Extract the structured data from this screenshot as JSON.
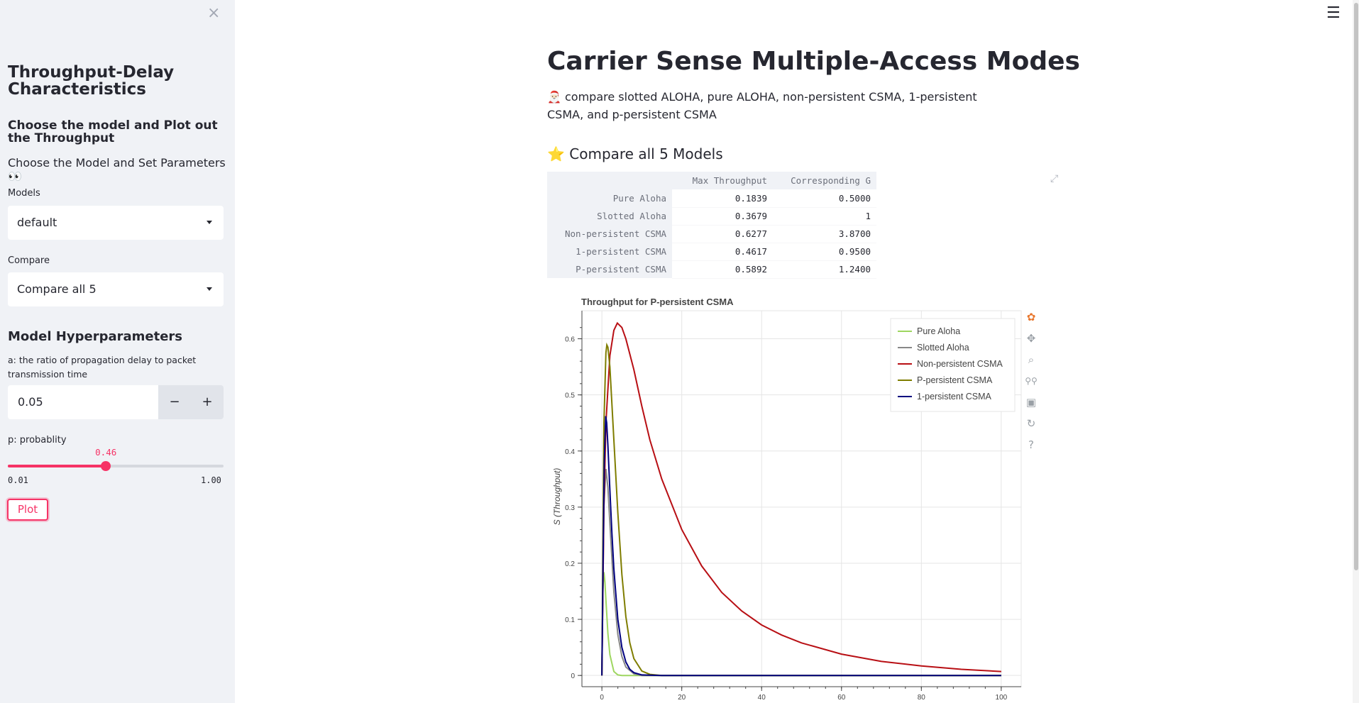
{
  "sidebar": {
    "close_icon": "×",
    "title": "Throughput-Delay Characteristics",
    "subtitle": "Choose the model and Plot out the Throughput",
    "text": "Choose the Model and Set Parameters 👀",
    "models_label": "Models",
    "models_value": "default",
    "compare_label": "Compare",
    "compare_value": "Compare all 5",
    "hyper_title": "Model Hyperparameters",
    "a_label": "a: the ratio of propagation delay to packet transmission time",
    "a_value": "0.05",
    "minus": "−",
    "plus": "+",
    "p_label": "p: probablity",
    "p_value": "0.46",
    "p_fraction": 0.4545,
    "p_min": "0.01",
    "p_max": "1.00",
    "plot_button": "Plot"
  },
  "header": {
    "menu_icon": "☰"
  },
  "main": {
    "title": "Carrier Sense Multiple-Access Modes",
    "description": "🎅🏻 compare slotted ALOHA, pure ALOHA, non-persistent CSMA, 1-persistent CSMA, and p-persistent CSMA",
    "section_title": "⭐ Compare all 5 Models",
    "table": {
      "columns": [
        "Max Throughput",
        "Corresponding G"
      ],
      "rows": [
        {
          "name": "Pure Aloha",
          "max": "0.1839",
          "g": "0.5000"
        },
        {
          "name": "Slotted Aloha",
          "max": "0.3679",
          "g": "1"
        },
        {
          "name": "Non-persistent CSMA",
          "max": "0.6277",
          "g": "3.8700"
        },
        {
          "name": "1-persistent CSMA",
          "max": "0.4617",
          "g": "0.9500"
        },
        {
          "name": "P-persistent CSMA",
          "max": "0.5892",
          "g": "1.2400"
        }
      ]
    }
  },
  "chart_data": {
    "type": "line",
    "title": "Throughput for P-persistent CSMA",
    "xlabel": "",
    "ylabel": "S (Throughput)",
    "xlim": [
      -5,
      105
    ],
    "ylim": [
      -0.02,
      0.65
    ],
    "x_ticks": [
      "0",
      "20",
      "40",
      "60",
      "80",
      "100"
    ],
    "y_ticks": [
      "0",
      "0.1",
      "0.2",
      "0.3",
      "0.4",
      "0.5",
      "0.6"
    ],
    "grid": true,
    "legend_position": "top-right",
    "series": [
      {
        "name": "Pure Aloha",
        "color": "#9ed660",
        "x": [
          0,
          0.25,
          0.5,
          0.75,
          1,
          1.5,
          2,
          3,
          4,
          5,
          6,
          8,
          10,
          15,
          20,
          40,
          60,
          80,
          100
        ],
        "y": [
          0,
          0.152,
          0.184,
          0.167,
          0.135,
          0.075,
          0.037,
          0.007,
          0.001,
          0,
          0,
          0,
          0,
          0,
          0,
          0,
          0,
          0,
          0
        ]
      },
      {
        "name": "Slotted Aloha",
        "color": "#888888",
        "x": [
          0,
          0.5,
          1,
          1.5,
          2,
          3,
          4,
          5,
          6,
          8,
          10,
          15,
          20,
          40,
          60,
          80,
          100
        ],
        "y": [
          0,
          0.303,
          0.368,
          0.335,
          0.271,
          0.149,
          0.073,
          0.034,
          0.015,
          0.003,
          0,
          0,
          0,
          0,
          0,
          0,
          0
        ]
      },
      {
        "name": "Non-persistent CSMA",
        "color": "#b80f14",
        "x": [
          0,
          0.5,
          1,
          2,
          3,
          3.87,
          5,
          6,
          8,
          10,
          12,
          15,
          20,
          25,
          30,
          35,
          40,
          45,
          50,
          60,
          70,
          80,
          90,
          100
        ],
        "y": [
          0,
          0.3,
          0.45,
          0.57,
          0.615,
          0.628,
          0.62,
          0.6,
          0.545,
          0.48,
          0.42,
          0.35,
          0.26,
          0.195,
          0.148,
          0.115,
          0.09,
          0.072,
          0.058,
          0.038,
          0.025,
          0.017,
          0.011,
          0.007
        ]
      },
      {
        "name": "P-persistent CSMA",
        "color": "#7f7d00",
        "x": [
          0,
          0.5,
          1,
          1.24,
          1.5,
          2,
          3,
          4,
          5,
          6,
          7,
          8,
          10,
          12,
          15,
          20,
          40,
          60,
          80,
          100
        ],
        "y": [
          0,
          0.45,
          0.575,
          0.589,
          0.585,
          0.55,
          0.42,
          0.29,
          0.18,
          0.105,
          0.058,
          0.03,
          0.008,
          0.002,
          0,
          0,
          0,
          0,
          0,
          0
        ]
      },
      {
        "name": "1-persistent CSMA",
        "color": "#00007f",
        "x": [
          0,
          0.3,
          0.6,
          0.95,
          1.2,
          1.5,
          2,
          2.5,
          3,
          4,
          5,
          6,
          7,
          8,
          10,
          15,
          20,
          40,
          60,
          80,
          100
        ],
        "y": [
          0,
          0.2,
          0.38,
          0.462,
          0.45,
          0.41,
          0.33,
          0.255,
          0.19,
          0.1,
          0.05,
          0.024,
          0.011,
          0.005,
          0.001,
          0,
          0,
          0,
          0,
          0,
          0
        ]
      }
    ],
    "toolbar_icons": [
      "bokeh-logo-icon",
      "pan-icon",
      "box-zoom-icon",
      "wheel-zoom-icon",
      "save-icon",
      "reset-icon",
      "help-icon"
    ]
  }
}
